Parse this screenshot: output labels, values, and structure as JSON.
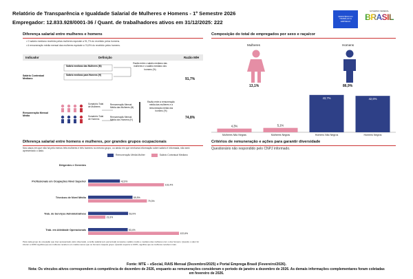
{
  "header": {
    "title": "Relatório de Transparência e Igualdade Salarial de Mulheres e Homens - 1º Semestre 2026",
    "employer_line": "Empregador: 12.833.928/0001-36 / Quant. de trabalhadores ativos em 31/12/2025: 222",
    "logo_box_text": "MINISTÉRIO DO TRABALHO E EMPREGO",
    "logo_gov_caption": "GOVERNO FEDERAL",
    "logo_gov_word": "BRASIL"
  },
  "left_top": {
    "section_title": "Diferença salarial entre mulheres e homens",
    "bullet1": "• O salário mediano recebido pelas mulheres equivale a 91,7% do recebido pelos homens.",
    "bullet2": "• A remuneração média mensal das mulheres equivale a 74,8% do recebido pelos homens.",
    "table_headers": {
      "indicator": "Indicador",
      "definition": "Definição",
      "ratio": "Razão M/H"
    },
    "row1": {
      "label": "Salário Contratual Mediano",
      "def_women": "Salário mediano das Mulheres (M)",
      "def_men": "Salário mediano para Homens (H)",
      "def_side": "Razão entre o salário mediano das mulheres e o salário mediano dos homens (%)",
      "ratio": "91,7%"
    },
    "row2": {
      "label": "Remuneração Mensal Média",
      "def_women_total": "Somatório Total de Mulheres",
      "def_men_total": "Somatório Total de Homens",
      "def_women_rem": "Remuneração Mensal Média das Mulheres (M)",
      "def_men_rem": "Remuneração Mensal Média dos Homens (H)",
      "def_side": "Razão entre a remuneração média das mulheres e a remuneração média dos homens (%)",
      "ratio": "74,8%"
    }
  },
  "right_top": {
    "section_title": "Composição do total de empregados por sexo e raça/cor",
    "women_label": "Mulheres",
    "men_label": "Homens",
    "women_pct": "13,1%",
    "men_pct": "86,9%",
    "colors": {
      "women": "#e58ea5",
      "men": "#2e4087"
    }
  },
  "chart_data": [
    {
      "type": "bar",
      "title": "Composição do total de empregados por sexo e raça/cor",
      "categories": [
        "Mulheres Não Negras",
        "Mulheres Negras",
        "Homens Não Negros",
        "Homens Negros"
      ],
      "values": [
        4.3,
        5.1,
        43.7,
        42.6
      ],
      "value_labels": [
        "4,3%",
        "5,1%",
        "43,7%",
        "42,6%"
      ],
      "ylim": [
        0,
        50
      ]
    },
    {
      "type": "bar",
      "title": "Diferença salarial entre homens e mulheres, por grandes grupos ocupacionais",
      "categories": [
        "Dirigentes e Gerentes",
        "Profissionais em Ocupações Nível Superior",
        "Técnicos de Nível Médio",
        "Trab. de Serviços Administrativos",
        "Trab. em Atividade Operacionais"
      ],
      "series": [
        {
          "name": "Remuneração Média Mulher",
          "values": [
            null,
            42.9,
            59.9,
            53.9,
            53.4
          ]
        },
        {
          "name": "Salário Contratual Mediano",
          "values": [
            null,
            102.4,
            79.3,
            23.3,
            122.6
          ]
        }
      ],
      "value_labels": {
        "Remuneração Média Mulher": [
          "",
          "42,9%",
          "59,9%",
          "53,9%",
          "53,4%"
        ],
        "Salário Contratual Mediano": [
          "",
          "102,4%",
          "79,3%",
          "23,3%",
          "122,6%"
        ]
      }
    }
  ],
  "bottom_left": {
    "section_title": "Diferença salarial entre homens e mulheres, por grandes grupos ocupacionais",
    "intro": "Nos casos em que não há pelo menos três mulheres e três homens no mesmo grupo, ou ainda em que nenhuma informação sobre salário é informada, não será apresentado o dado.",
    "legend_dark": "Remuneração Média Mulher",
    "legend_pink": "Salário Contratual Mediano",
    "footnote": "Para cada grupo de ocupação que tiver apresentado valor observado, a razão salarial (em percentual) compara o salário médio e mediano das mulheres com o dos homens. Quando o valor for inferior a 100% significa que as mulheres recebem em média menos que os homens naquele grupo. Quando superior a 100%, significa que as mulheres recebem mais."
  },
  "bottom_right": {
    "section_title": "Critérios de remuneração e ações para garantir diversidade",
    "text": "Questionário não respondido pelo CNPJ informado."
  },
  "footer": {
    "source": "Fonte: MTE – eSocial, RAIS Mensal (Dezembro/2025) e Portal Emprega Brasil (Fevereiro/2026).",
    "note": "Nota: Os vínculos ativos correspondem à competência de dezembro de 2026, enquanto as remunerações consideram o período de janeiro a dezembro de 2026. As demais informações complementares foram coletadas em fevereiro de 2026."
  }
}
